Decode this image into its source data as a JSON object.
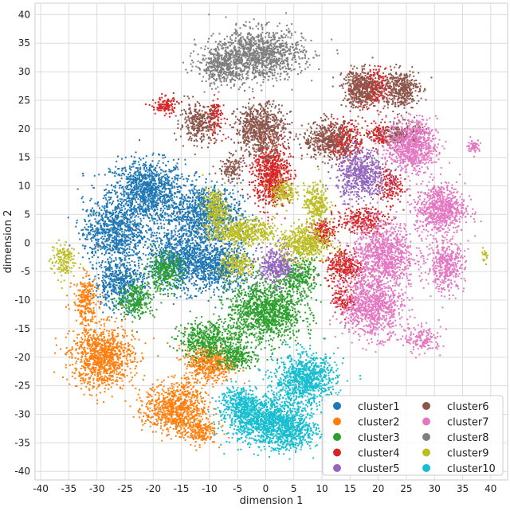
{
  "chart_data": {
    "type": "scatter",
    "title": "",
    "xlabel": "dimension 1",
    "ylabel": "dimension 2",
    "xlim": [
      -41,
      43
    ],
    "ylim": [
      -41.5,
      42
    ],
    "xticks": [
      -40,
      -35,
      -30,
      -25,
      -20,
      -15,
      -10,
      -5,
      0,
      5,
      10,
      15,
      20,
      25,
      30,
      35,
      40
    ],
    "yticks": [
      -40,
      -35,
      -30,
      -25,
      -20,
      -15,
      -10,
      -5,
      0,
      5,
      10,
      15,
      20,
      25,
      30,
      35,
      40
    ],
    "grid": true,
    "legend_position": "bottom-right",
    "legend_columns": 2,
    "series": [
      {
        "name": "cluster1",
        "color": "#1f77b4",
        "blobs": [
          [
            -21,
            9,
            6,
            5,
            1100
          ],
          [
            -11,
            5,
            6,
            5,
            900
          ],
          [
            -27,
            2,
            5,
            5,
            800
          ],
          [
            -15,
            -3,
            6,
            5,
            900
          ],
          [
            -26,
            -7,
            4,
            4,
            500
          ],
          [
            -8,
            -4,
            5,
            4,
            600
          ]
        ]
      },
      {
        "name": "cluster2",
        "color": "#ff7f0e",
        "blobs": [
          [
            -29,
            -20,
            5,
            5,
            1000
          ],
          [
            -32,
            -10,
            2,
            4,
            250
          ],
          [
            -16,
            -29,
            5,
            4,
            800
          ],
          [
            -10,
            -21,
            4,
            3,
            500
          ],
          [
            -12,
            -33,
            3,
            2,
            200
          ]
        ]
      },
      {
        "name": "cluster3",
        "color": "#2ca02c",
        "blobs": [
          [
            0,
            -12,
            6,
            5,
            1200
          ],
          [
            -10,
            -17,
            5,
            3,
            500
          ],
          [
            -18,
            -5,
            3,
            3,
            300
          ],
          [
            -23,
            -10,
            3,
            3,
            250
          ],
          [
            6,
            -6,
            3,
            3,
            300
          ],
          [
            -5,
            -20,
            3,
            2,
            200
          ]
        ]
      },
      {
        "name": "cluster4",
        "color": "#d62728",
        "blobs": [
          [
            1,
            12,
            3,
            5,
            700
          ],
          [
            -18,
            24,
            2,
            1.5,
            120
          ],
          [
            -9,
            22,
            1.5,
            3,
            120
          ],
          [
            17,
            4,
            4,
            2,
            250
          ],
          [
            14,
            18,
            3,
            3,
            300
          ],
          [
            19,
            27,
            3,
            3,
            300
          ],
          [
            14,
            -4,
            3,
            3,
            300
          ],
          [
            10,
            2,
            2,
            2,
            150
          ],
          [
            22,
            10,
            2,
            3,
            150
          ],
          [
            20,
            19,
            2,
            2,
            120
          ],
          [
            14,
            -10,
            2,
            2,
            120
          ]
        ]
      },
      {
        "name": "cluster5",
        "color": "#9467bd",
        "blobs": [
          [
            17,
            12,
            4,
            4,
            600
          ],
          [
            2,
            -4,
            3,
            3,
            350
          ]
        ]
      },
      {
        "name": "cluster6",
        "color": "#8c564b",
        "blobs": [
          [
            -1,
            20,
            4,
            4,
            700
          ],
          [
            -12,
            21,
            3,
            3,
            300
          ],
          [
            11,
            18,
            4,
            3,
            400
          ],
          [
            17,
            27,
            3,
            3,
            400
          ],
          [
            24,
            27,
            3,
            3,
            400
          ],
          [
            24,
            19,
            3,
            2,
            200
          ],
          [
            -6,
            13,
            2,
            2,
            120
          ]
        ]
      },
      {
        "name": "cluster7",
        "color": "#e377c2",
        "blobs": [
          [
            26,
            17,
            4,
            4,
            800
          ],
          [
            31,
            6,
            4,
            4,
            700
          ],
          [
            21,
            -2,
            5,
            5,
            900
          ],
          [
            19,
            -11,
            5,
            5,
            900
          ],
          [
            32,
            -4,
            3,
            4,
            400
          ],
          [
            37,
            17,
            1,
            1,
            60
          ],
          [
            28,
            -17,
            3,
            2,
            150
          ]
        ]
      },
      {
        "name": "cluster8",
        "color": "#7f7f7f",
        "blobs": [
          [
            -1,
            33,
            7,
            4,
            1100
          ],
          [
            -8,
            31,
            4,
            3,
            400
          ]
        ]
      },
      {
        "name": "cluster9",
        "color": "#bcbd22",
        "blobs": [
          [
            -4,
            2,
            5,
            2,
            500
          ],
          [
            7,
            0,
            4,
            3,
            500
          ],
          [
            -9,
            6,
            2,
            3,
            250
          ],
          [
            -36,
            -3,
            2,
            3,
            150
          ],
          [
            9,
            7,
            2,
            3,
            250
          ],
          [
            3,
            9,
            2,
            2,
            150
          ],
          [
            39,
            -2,
            0.5,
            1,
            20
          ],
          [
            -5,
            -4,
            3,
            2,
            200
          ]
        ]
      },
      {
        "name": "cluster10",
        "color": "#17becf",
        "blobs": [
          [
            0,
            -31,
            6,
            4,
            1100
          ],
          [
            7,
            -24,
            5,
            4,
            900
          ],
          [
            5,
            -33,
            4,
            3,
            400
          ],
          [
            -5,
            -28,
            3,
            3,
            300
          ]
        ]
      }
    ]
  }
}
